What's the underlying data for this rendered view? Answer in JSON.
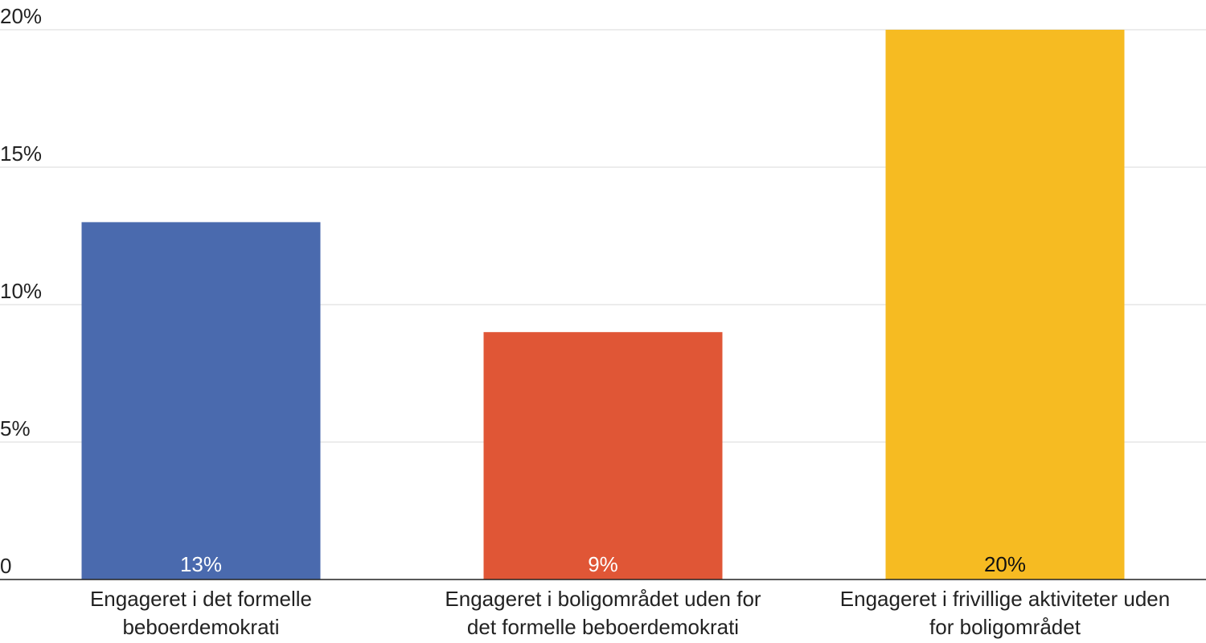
{
  "chart_data": {
    "type": "bar",
    "categories": [
      [
        "Engageret i det formelle",
        "beboerdemokrati"
      ],
      [
        "Engageret i boligområdet uden for",
        "det formelle beboerdemokrati"
      ],
      [
        "Engageret i frivillige aktiviteter uden",
        "for boligområdet"
      ]
    ],
    "values": [
      13,
      9,
      20
    ],
    "data_labels": [
      "13%",
      "9%",
      "20%"
    ],
    "colors": [
      "#4a6aae",
      "#e05636",
      "#f6bb22"
    ],
    "data_label_colors": [
      "#ffffff",
      "#ffffff",
      "#111111"
    ],
    "ylim": [
      0,
      20
    ],
    "yticks": [
      0,
      5,
      10,
      15,
      20
    ],
    "ytick_labels": [
      "0",
      "5%",
      "10%",
      "15%",
      "20%"
    ],
    "grid": true,
    "legend": "none"
  }
}
